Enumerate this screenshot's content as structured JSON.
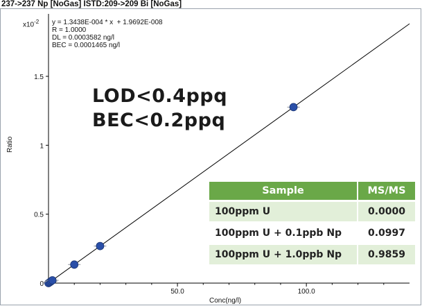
{
  "header": {
    "title": "237->237 Np [NoGas] ISTD:209->209 Bi [NoGas]"
  },
  "calibration": {
    "equation": "y = 1.3438E-004 * x  + 1.9692E-008",
    "r": "R = 1.0000",
    "dl": "DL = 0.0003582 ng/l",
    "bec": "BEC = 0.0001465 ng/l"
  },
  "highlights": {
    "lod": "LOD<0.4ppq",
    "bec": "BEC<0.2ppq"
  },
  "results_table": {
    "headers": [
      "Sample",
      "MS/MS"
    ],
    "rows": [
      {
        "sample": "100ppm U",
        "value": "0.0000"
      },
      {
        "sample": "100ppm U + 0.1ppb Np",
        "value": "0.0997"
      },
      {
        "sample": "100ppm U + 1.0ppb Np",
        "value": "0.9859"
      }
    ]
  },
  "chart_data": {
    "type": "scatter",
    "xlabel": "Conc(ng/l)",
    "ylabel": "Ratio",
    "y_multiplier_label": "x10",
    "y_multiplier_exp": "-2",
    "xlim": [
      0,
      140
    ],
    "ylim": [
      0,
      1.5
    ],
    "x_ticks": [
      50,
      100
    ],
    "x_tick_labels": [
      "50.0",
      "100.0"
    ],
    "y_ticks": [
      0,
      0.5,
      1,
      1.5
    ],
    "y_tick_labels": [
      "0",
      "0.5",
      "1",
      "1.5"
    ],
    "series": [
      {
        "x": [
          0,
          0.5,
          1.0,
          1.5,
          10,
          20,
          95
        ],
        "y": [
          0.0,
          0.0067,
          0.0134,
          0.0202,
          0.1344,
          0.2688,
          1.2766
        ]
      }
    ],
    "fit_line": {
      "slope": 0.013438,
      "intercept": 1.9692e-06
    },
    "colors": {
      "points": "#2a4fa8",
      "line": "#000000"
    }
  }
}
